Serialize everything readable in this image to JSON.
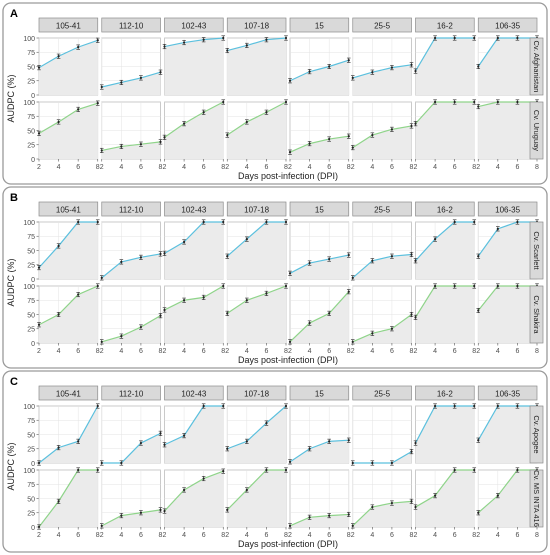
{
  "chart_data": {
    "type": "line",
    "facet_columns": [
      "105-41",
      "112-10",
      "102-43",
      "107-18",
      "15",
      "25-5",
      "16-2",
      "106-35"
    ],
    "x_ticks": [
      2,
      4,
      6,
      8
    ],
    "y_ticks": [
      0,
      25,
      50,
      75,
      100
    ],
    "ylim": [
      0,
      100
    ],
    "xlabel": "Days post-infection (DPI)",
    "ylabel": "AUDPC (%)",
    "grid": true,
    "colors": {
      "blue": "#5bc0de",
      "green": "#8fd48a",
      "panel_bg": "#ebebeb",
      "strip_bg": "#d9d9d9"
    },
    "panels": [
      {
        "letter": "A",
        "rows": [
          {
            "cultivar": "Cv. Afghanistan",
            "color": "blue",
            "series": [
              [
                48,
                68,
                84,
                96
              ],
              [
                14,
                22,
                30,
                40
              ],
              [
                85,
                92,
                97,
                100
              ],
              [
                78,
                87,
                97,
                100
              ],
              [
                25,
                41,
                50,
                61
              ],
              [
                30,
                40,
                48,
                53
              ],
              [
                42,
                100,
                100,
                100
              ],
              [
                50,
                100,
                100,
                100
              ]
            ]
          },
          {
            "cultivar": "Cv. Uruguay",
            "color": "green",
            "series": [
              [
                45,
                65,
                87,
                98
              ],
              [
                15,
                22,
                26,
                30
              ],
              [
                38,
                62,
                82,
                100
              ],
              [
                42,
                65,
                82,
                100
              ],
              [
                12,
                27,
                35,
                40
              ],
              [
                20,
                42,
                52,
                58
              ],
              [
                62,
                100,
                100,
                100
              ],
              [
                92,
                100,
                100,
                100
              ]
            ]
          }
        ]
      },
      {
        "letter": "B",
        "rows": [
          {
            "cultivar": "Cv. Scarlett",
            "color": "blue",
            "series": [
              [
                20,
                58,
                100,
                100
              ],
              [
                2,
                30,
                38,
                44
              ],
              [
                45,
                65,
                100,
                100
              ],
              [
                40,
                70,
                100,
                100
              ],
              [
                10,
                28,
                35,
                42
              ],
              [
                2,
                32,
                40,
                43
              ],
              [
                32,
                70,
                100,
                100
              ],
              [
                40,
                88,
                100,
                100
              ]
            ]
          },
          {
            "cultivar": "Cv. Shakira",
            "color": "green",
            "series": [
              [
                32,
                50,
                85,
                100
              ],
              [
                2,
                12,
                28,
                48
              ],
              [
                58,
                75,
                80,
                100
              ],
              [
                52,
                75,
                87,
                100
              ],
              [
                2,
                35,
                52,
                90
              ],
              [
                2,
                17,
                25,
                50
              ],
              [
                45,
                100,
                100,
                100
              ],
              [
                57,
                100,
                100,
                100
              ]
            ]
          }
        ]
      },
      {
        "letter": "C",
        "rows": [
          {
            "cultivar": "Cv. Apogee",
            "color": "blue",
            "series": [
              [
                0,
                27,
                38,
                100
              ],
              [
                0,
                0,
                35,
                52
              ],
              [
                32,
                48,
                100,
                100
              ],
              [
                25,
                38,
                70,
                100
              ],
              [
                2,
                25,
                38,
                40
              ],
              [
                0,
                0,
                0,
                20
              ],
              [
                35,
                100,
                100,
                100
              ],
              [
                40,
                100,
                100,
                100
              ]
            ]
          },
          {
            "cultivar": "Cv. MS INTA 416",
            "color": "green",
            "series": [
              [
                0,
                45,
                100,
                100
              ],
              [
                2,
                20,
                25,
                30
              ],
              [
                28,
                65,
                85,
                98
              ],
              [
                30,
                65,
                100,
                100
              ],
              [
                2,
                17,
                20,
                22
              ],
              [
                2,
                35,
                42,
                45
              ],
              [
                35,
                55,
                100,
                100
              ],
              [
                25,
                55,
                100,
                100
              ]
            ]
          }
        ]
      }
    ]
  }
}
